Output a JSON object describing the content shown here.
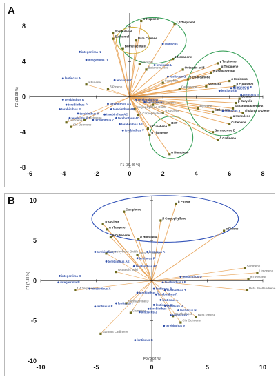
{
  "figure": {
    "panels": [
      "A",
      "B"
    ]
  },
  "chart_data": [
    {
      "panel": "A",
      "type": "scatter",
      "subtype": "biplot",
      "xlabel": "F1 (39.46 %)",
      "ylabel": "F2 (13.08 %)",
      "xlim": [
        -6,
        8
      ],
      "ylim": [
        -8,
        9.5
      ],
      "xticks": [
        -6,
        -4,
        -2,
        0,
        2,
        4,
        6,
        8
      ],
      "yticks": [
        -8,
        -4,
        0,
        4,
        8
      ],
      "grid": false,
      "colors": {
        "variable": "#8a8a8a",
        "observation": "#2f4ea8",
        "loading_line": "#e8a357",
        "ellipse": "#3aa15a",
        "ellipse_alt": "#d4b341",
        "axis": "#222222",
        "marker": "#6b6a1e"
      },
      "variables": [
        {
          "name": "α Terpineol",
          "x": 0.7,
          "y": 8.6,
          "highlight": true
        },
        {
          "name": "1,4 Terpineol",
          "x": 2.7,
          "y": 8.2,
          "highlight": true
        },
        {
          "name": "Spathulenol",
          "x": -1.0,
          "y": 7.2,
          "highlight": true
        },
        {
          "name": "Eudesmol",
          "x": -1.0,
          "y": 6.6,
          "highlight": true
        },
        {
          "name": "Para Cymene",
          "x": 0.4,
          "y": 6.4,
          "highlight": true
        },
        {
          "name": "Bornyl acetate",
          "x": -0.4,
          "y": 5.5,
          "highlight": true
        },
        {
          "name": "2 Nonanone",
          "x": 2.6,
          "y": 4.3,
          "highlight": true
        },
        {
          "name": "γ Terpinene",
          "x": 5.3,
          "y": 3.8,
          "highlight": true
        },
        {
          "name": "Octanoic acid",
          "x": 3.2,
          "y": 3.1,
          "highlight": true
        },
        {
          "name": "α Terpinene",
          "x": 5.4,
          "y": 3.2,
          "highlight": true
        },
        {
          "name": "β Phellandrene",
          "x": 4.9,
          "y": 2.7,
          "highlight": true
        },
        {
          "name": "2 Undecanone",
          "x": 3.5,
          "y": 2.0,
          "highlight": true
        },
        {
          "name": "Sabinene",
          "x": 4.6,
          "y": 1.2,
          "highlight": true
        },
        {
          "name": "α Eudesmol",
          "x": 6.0,
          "y": 1.8,
          "highlight": true
        },
        {
          "name": "β Eudesmol",
          "x": 6.3,
          "y": 1.2,
          "highlight": true
        },
        {
          "name": "Octanol",
          "x": 6.6,
          "y": -0.2,
          "highlight": true
        },
        {
          "name": "β Caryolid",
          "x": 6.4,
          "y": -0.7,
          "highlight": true
        },
        {
          "name": "Alloaromadendrene",
          "x": 6.2,
          "y": -1.3,
          "highlight": true
        },
        {
          "name": "β Elemene",
          "x": 5.0,
          "y": -1.7,
          "highlight": true
        },
        {
          "name": "Thujanol A-Diene",
          "x": 6.8,
          "y": -1.8,
          "highlight": true
        },
        {
          "name": "α Humulene",
          "x": 6.1,
          "y": -2.4,
          "highlight": true
        },
        {
          "name": "Cubebene",
          "x": 6.0,
          "y": -3.1,
          "highlight": true
        },
        {
          "name": "Germacrene D",
          "x": 5.0,
          "y": -4.0,
          "highlight": true
        },
        {
          "name": "δ Cadinene",
          "x": 5.3,
          "y": -4.9,
          "highlight": true
        },
        {
          "name": "α Cubebene",
          "x": 1.1,
          "y": -3.6,
          "highlight": true
        },
        {
          "name": "α Ylangene",
          "x": 1.2,
          "y": -4.3,
          "highlight": true
        },
        {
          "name": "BHT",
          "x": 2.4,
          "y": -3.2,
          "highlight": true
        },
        {
          "name": "α Humulene",
          "x": 2.4,
          "y": -6.5,
          "highlight": true
        },
        {
          "name": "Decanal",
          "x": 0.6,
          "y": 3.7,
          "highlight": false
        },
        {
          "name": "Butanoic Acid",
          "x": 1.0,
          "y": 3.1,
          "highlight": false
        },
        {
          "name": "Camphor",
          "x": 2.0,
          "y": 1.6,
          "highlight": false
        },
        {
          "name": "Camphene",
          "x": 3.0,
          "y": 0.9,
          "highlight": false
        },
        {
          "name": "α Pinene",
          "x": -2.6,
          "y": 1.4,
          "highlight": false
        },
        {
          "name": "β Pinene",
          "x": -1.3,
          "y": 0.9,
          "highlight": false
        },
        {
          "name": "Limonene",
          "x": -3.8,
          "y": -2.9,
          "highlight": false
        },
        {
          "name": "Cis Ocimene",
          "x": -3.5,
          "y": -3.4,
          "highlight": false
        },
        {
          "name": "β Ocimene",
          "x": -2.7,
          "y": -2.6,
          "highlight": false
        },
        {
          "name": "Tricyclene",
          "x": 2.0,
          "y": -1.8,
          "highlight": false
        },
        {
          "name": "Myrcene",
          "x": 4.1,
          "y": -1.3,
          "highlight": false
        },
        {
          "name": "Delta 3 Carene",
          "x": 1.4,
          "y": -0.9,
          "highlight": false
        },
        {
          "name": "Caryophyllene Oxide",
          "x": 0.3,
          "y": -1.4,
          "highlight": false
        },
        {
          "name": "β Caryophyllene",
          "x": 0.5,
          "y": -2.1,
          "highlight": false
        }
      ],
      "observations": [
        {
          "name": "integerrima N",
          "x": -3.0,
          "y": 5.1
        },
        {
          "name": "integerrima O",
          "x": -2.6,
          "y": 4.2
        },
        {
          "name": "lentiscus I",
          "x": 2.0,
          "y": 6.0
        },
        {
          "name": "lentiscus A",
          "x": -4.0,
          "y": 2.1
        },
        {
          "name": "lentiscus G",
          "x": 2.3,
          "y": 2.3
        },
        {
          "name": "lentiscus C",
          "x": -0.9,
          "y": 1.9
        },
        {
          "name": "lentiscus B",
          "x": 6.1,
          "y": 1.0
        },
        {
          "name": "lentiscus D",
          "x": 6.7,
          "y": 0.2
        },
        {
          "name": "lentiscus E",
          "x": 5.4,
          "y": 0.7
        },
        {
          "name": "lentiscus F",
          "x": 6.3,
          "y": 1.1
        },
        {
          "name": "lentiscus J",
          "x": 5.6,
          "y": -1.6
        },
        {
          "name": "lentiscus H",
          "x": 0.9,
          "y": -0.6
        },
        {
          "name": "lentiscus L",
          "x": 1.5,
          "y": 3.6
        },
        {
          "name": "terebinthus R",
          "x": -4.0,
          "y": -0.3
        },
        {
          "name": "terebinthus P",
          "x": -3.8,
          "y": -0.9
        },
        {
          "name": "terebinthus S",
          "x": -4.2,
          "y": -1.4
        },
        {
          "name": "terebinthus X",
          "x": -3.1,
          "y": -1.9
        },
        {
          "name": "terebinthus T",
          "x": -3.6,
          "y": -2.4
        },
        {
          "name": "terebinthus Z",
          "x": -2.2,
          "y": -2.6
        },
        {
          "name": "terebinthus AA",
          "x": -1.3,
          "y": -0.8
        },
        {
          "name": "terebinthus AB",
          "x": -1.1,
          "y": -1.4
        },
        {
          "name": "terebinthus AC",
          "x": -1.5,
          "y": -2.0
        },
        {
          "name": "terebinthus AD",
          "x": -0.8,
          "y": -2.4
        },
        {
          "name": "terebinthus AE",
          "x": -0.6,
          "y": -3.1
        },
        {
          "name": "terebinthus V",
          "x": -0.4,
          "y": -3.8
        },
        {
          "name": "terebinthus W",
          "x": 0.4,
          "y": -0.3
        }
      ],
      "ellipses": [
        {
          "cx": 1.4,
          "cy": 6.4,
          "rx": 2.0,
          "ry": 2.6,
          "color": "ellipse"
        },
        {
          "cx": 0.2,
          "cy": 6.4,
          "rx": 1.0,
          "ry": 1.5,
          "color": "ellipse_alt"
        },
        {
          "cx": 5.6,
          "cy": 0.4,
          "rx": 2.2,
          "ry": 4.8,
          "color": "ellipse"
        },
        {
          "cx": 2.5,
          "cy": -4.6,
          "rx": 1.3,
          "ry": 2.4,
          "color": "ellipse"
        }
      ]
    },
    {
      "panel": "B",
      "type": "scatter",
      "subtype": "biplot",
      "xlabel": "F3 (8.82 %)",
      "ylabel": "F4 (7.88 %)",
      "xlim": [
        -10,
        10
      ],
      "ylim": [
        -10,
        10.5
      ],
      "xticks": [
        -10,
        -5,
        0,
        5,
        10
      ],
      "yticks": [
        -10,
        -5,
        0,
        5,
        10
      ],
      "grid": false,
      "colors": {
        "variable": "#8a8a8a",
        "observation": "#2f4ea8",
        "loading_line": "#e8a357",
        "ellipse": "#3353b8",
        "axis": "#222222",
        "marker": "#6b6a1e"
      },
      "variables": [
        {
          "name": "β Pinene",
          "x": 2.2,
          "y": 9.6,
          "highlight": true
        },
        {
          "name": "Camphene",
          "x": -2.5,
          "y": 8.6,
          "highlight": true
        },
        {
          "name": "β Caryophyllene",
          "x": 0.8,
          "y": 7.5,
          "highlight": true
        },
        {
          "name": "Tricyclene",
          "x": -4.4,
          "y": 7.1,
          "highlight": true
        },
        {
          "name": "α Ylangene",
          "x": -4.0,
          "y": 6.4,
          "highlight": true
        },
        {
          "name": "α Pinene",
          "x": 6.5,
          "y": 6.2,
          "highlight": true
        },
        {
          "name": "β Cubebene",
          "x": -3.7,
          "y": 5.4,
          "highlight": true
        },
        {
          "name": "α Humulene",
          "x": -1.2,
          "y": 5.2,
          "highlight": true
        },
        {
          "name": "Caryophyllene Oxide",
          "x": -4.1,
          "y": 3.4,
          "highlight": false
        },
        {
          "name": "Delta 3 Carene",
          "x": -1.3,
          "y": 3.2,
          "highlight": false
        },
        {
          "name": "Octanoic acid",
          "x": -3.2,
          "y": 1.1,
          "highlight": false
        },
        {
          "name": "1,4 Terpineol",
          "x": -6.9,
          "y": -1.2,
          "highlight": false
        },
        {
          "name": "Germacrene D",
          "x": -2.3,
          "y": -2.8,
          "highlight": false
        },
        {
          "name": "Camphor",
          "x": -1.9,
          "y": -4.0,
          "highlight": false
        },
        {
          "name": "Spathulenol",
          "x": 1.9,
          "y": -4.4,
          "highlight": false
        },
        {
          "name": "Beta Pinene",
          "x": 4.0,
          "y": -4.5,
          "highlight": false
        },
        {
          "name": "Cis Ocimene",
          "x": 2.6,
          "y": -5.2,
          "highlight": false
        },
        {
          "name": "Gamma Cadinene",
          "x": -4.6,
          "y": -6.6,
          "highlight": false
        },
        {
          "name": "Sabinene",
          "x": 8.4,
          "y": 1.6,
          "highlight": false
        },
        {
          "name": "Limonene",
          "x": 9.5,
          "y": 1.0,
          "highlight": false
        },
        {
          "name": "β Ocimene",
          "x": 8.7,
          "y": 0.2,
          "highlight": false
        },
        {
          "name": "Beta Phellandrene",
          "x": 8.6,
          "y": -1.2,
          "highlight": false
        }
      ],
      "observations": [
        {
          "name": "lentiscus A",
          "x": -0.4,
          "y": 3.6
        },
        {
          "name": "terebinthus Y",
          "x": -5.1,
          "y": 3.6
        },
        {
          "name": "lentiscus F",
          "x": -1.3,
          "y": 2.8
        },
        {
          "name": "terebinthus AC",
          "x": -1.6,
          "y": 1.8
        },
        {
          "name": "terebinthus AE",
          "x": -4.1,
          "y": 2.4
        },
        {
          "name": "terebinthus U",
          "x": 2.6,
          "y": 0.5
        },
        {
          "name": "integerrima O",
          "x": -8.3,
          "y": 0.6
        },
        {
          "name": "integerrima N",
          "x": -8.4,
          "y": -0.2
        },
        {
          "name": "terebinthus X",
          "x": -5.6,
          "y": -1.0
        },
        {
          "name": "lentiscus E",
          "x": -5.1,
          "y": -3.2
        },
        {
          "name": "lentiscus I",
          "x": -3.2,
          "y": -2.8
        },
        {
          "name": "lentiscus B",
          "x": 0.2,
          "y": -1.0
        },
        {
          "name": "terebinthus AB",
          "x": 1.0,
          "y": -0.2
        },
        {
          "name": "terebinthus T",
          "x": 1.2,
          "y": -1.2
        },
        {
          "name": "terebinthus R",
          "x": 0.4,
          "y": -1.7
        },
        {
          "name": "lentiscus L",
          "x": 0.8,
          "y": -2.4
        },
        {
          "name": "lentiscus C",
          "x": 0.2,
          "y": -3.0
        },
        {
          "name": "terebinthus P",
          "x": -0.3,
          "y": -3.5
        },
        {
          "name": "lentiscus G",
          "x": 1.7,
          "y": -4.3
        },
        {
          "name": "lentiscus H",
          "x": 2.4,
          "y": -3.7
        },
        {
          "name": "lentiscus D",
          "x": 1.2,
          "y": -3.1
        },
        {
          "name": "lentiscus J",
          "x": -1.1,
          "y": -3.9
        },
        {
          "name": "terebinthus V",
          "x": 1.1,
          "y": -5.6
        },
        {
          "name": "lentiscus K",
          "x": -1.5,
          "y": -7.4
        },
        {
          "name": "terebinthus S",
          "x": -1.3,
          "y": -1.5
        }
      ],
      "ellipses": [
        {
          "cx": 1.2,
          "cy": 7.7,
          "rx": 6.6,
          "ry": 2.9,
          "color": "ellipse"
        }
      ]
    }
  ]
}
